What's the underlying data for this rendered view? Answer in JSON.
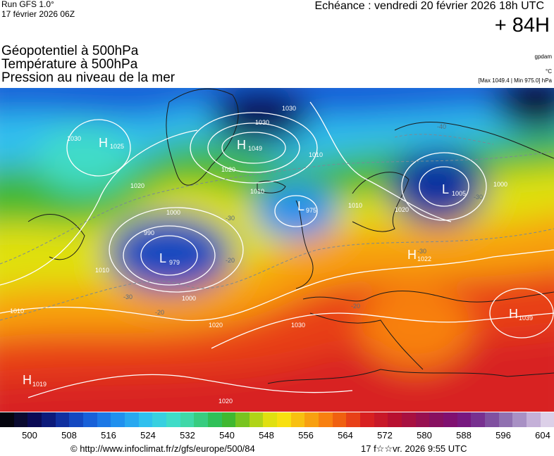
{
  "header": {
    "run": "Run GFS 1.0°",
    "run_date": "17 février 2026 06Z",
    "valid_time": "Echéance : vendredi 20 février 2026 18h UTC",
    "forecast_hour": "+ 84H",
    "title_lines": [
      "Géopotentiel à 500hPa",
      "Température à 500hPa",
      "Pression au niveau de la mer"
    ],
    "unit_geopotential": "gpdam",
    "unit_temperature": "°C",
    "pressure_extremes": "[Max 1049.4 | Min 975.0] hPa"
  },
  "map": {
    "pressure_centers": [
      {
        "type": "H",
        "value": "1025"
      },
      {
        "type": "H",
        "value": "1049"
      },
      {
        "type": "L",
        "value": "1005"
      },
      {
        "type": "L",
        "value": "975"
      },
      {
        "type": "L",
        "value": "979"
      },
      {
        "type": "H",
        "value": "1022"
      },
      {
        "type": "H",
        "value": "1039"
      },
      {
        "type": "H",
        "value": "1019"
      }
    ],
    "isobar_labels": [
      "1030",
      "1030",
      "1020",
      "1020",
      "1010",
      "1010",
      "1000",
      "1000",
      "990",
      "1010",
      "1000",
      "1010",
      "1020",
      "1030",
      "1020",
      "1010",
      "1030",
      "1020"
    ],
    "temperature_labels": [
      "-40",
      "-30",
      "-30",
      "-20",
      "-30",
      "-30",
      "-20",
      "-20"
    ]
  },
  "colorbar": {
    "colors": [
      "#05050f",
      "#0a0a30",
      "#0a0a55",
      "#0c1a7a",
      "#1030a0",
      "#1448c0",
      "#1860d8",
      "#1c78e6",
      "#2090ee",
      "#28a8f0",
      "#30c0ee",
      "#38d0e0",
      "#40dcc8",
      "#40d8a8",
      "#38cc80",
      "#30c058",
      "#40b830",
      "#78c420",
      "#b0d418",
      "#e0e010",
      "#f8e010",
      "#f8c010",
      "#f8a010",
      "#f88010",
      "#f06010",
      "#e84018",
      "#d82020",
      "#c81828",
      "#b81030",
      "#a81040",
      "#981050",
      "#881060",
      "#801070",
      "#781880",
      "#783090",
      "#8050a0",
      "#9070b0",
      "#a890c4",
      "#c4b0d8",
      "#dcd0e8"
    ],
    "ticks": [
      "500",
      "508",
      "516",
      "524",
      "532",
      "540",
      "548",
      "556",
      "564",
      "572",
      "580",
      "588",
      "596",
      "604"
    ]
  },
  "footer": {
    "source": "© http://www.infoclimat.fr/z/gfs/europe/500/84",
    "generated": "17 f☆☆vr. 2026  9:55 UTC"
  }
}
